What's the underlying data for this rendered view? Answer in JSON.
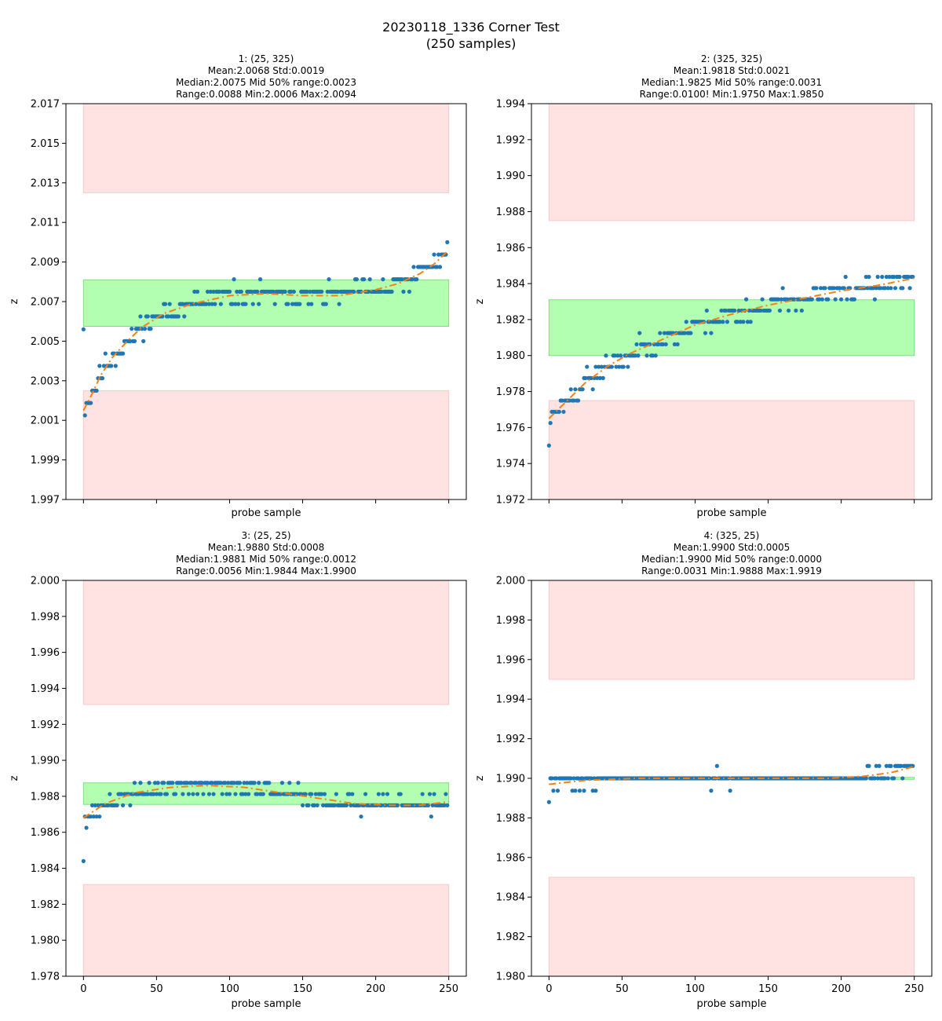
{
  "figure": {
    "title_line1": "20230118_1336 Corner Test",
    "title_line2": "(250 samples)"
  },
  "colors": {
    "points": "#1f77b4",
    "fit": "#ff7f0e",
    "good_band": "#b2ffb2",
    "good_band_edge": "#7fe07f",
    "bad_band": "#ffe2e2",
    "bad_band_edge": "#ffc8c8"
  },
  "chart_data": [
    {
      "type": "scatter",
      "title_lines": [
        "1: (25, 325)",
        "Mean:2.0068  Std:0.0019",
        "Median:2.0075  Mid 50% range:0.0023",
        "Range:0.0088  Min:2.0006  Max:2.0094"
      ],
      "xlabel": "probe sample",
      "ylabel": "z",
      "xlim": [
        -12,
        262
      ],
      "ylim": [
        1.997,
        2.017
      ],
      "yticks": [
        "1.997",
        "1.999",
        "2.001",
        "2.003",
        "2.005",
        "2.007",
        "2.009",
        "2.011",
        "2.013",
        "2.015",
        "2.017"
      ],
      "xticks": [
        0,
        50,
        100,
        150,
        200,
        250
      ],
      "show_xtick_labels": false,
      "green_band": [
        2.00575,
        2.0081
      ],
      "red_bands": [
        [
          1.997,
          2.0025
        ],
        [
          2.0125,
          2.017
        ]
      ],
      "band_x": [
        0,
        250
      ],
      "points_quantum": 0.000625,
      "trend": [
        [
          0,
          2.0015
        ],
        [
          5,
          2.0022
        ],
        [
          12,
          2.0033
        ],
        [
          20,
          2.0042
        ],
        [
          30,
          2.005
        ],
        [
          40,
          2.0057
        ],
        [
          55,
          2.0064
        ],
        [
          75,
          2.0069
        ],
        [
          100,
          2.0073
        ],
        [
          125,
          2.0074
        ],
        [
          150,
          2.0073
        ],
        [
          175,
          2.0073
        ],
        [
          200,
          2.0076
        ],
        [
          215,
          2.0079
        ],
        [
          230,
          2.0084
        ],
        [
          240,
          2.0089
        ],
        [
          250,
          2.0096
        ]
      ],
      "noise": 0.0007,
      "first_point": 2.0056,
      "seed": 11
    },
    {
      "type": "scatter",
      "title_lines": [
        "2: (325, 325)",
        "Mean:1.9818  Std:0.0021",
        "Median:1.9825  Mid 50% range:0.0031",
        "Range:0.0100!  Min:1.9750  Max:1.9850"
      ],
      "xlabel": "probe sample",
      "ylabel": "z",
      "xlim": [
        -12,
        262
      ],
      "ylim": [
        1.972,
        1.994
      ],
      "yticks": [
        "1.972",
        "1.974",
        "1.976",
        "1.978",
        "1.980",
        "1.982",
        "1.984",
        "1.986",
        "1.988",
        "1.990",
        "1.992",
        "1.994"
      ],
      "xticks": [
        0,
        50,
        100,
        150,
        200,
        250
      ],
      "show_xtick_labels": false,
      "green_band": [
        1.98,
        1.9831
      ],
      "red_bands": [
        [
          1.972,
          1.9775
        ],
        [
          1.9875,
          1.994
        ]
      ],
      "band_x": [
        0,
        250
      ],
      "points_quantum": 0.000625,
      "trend": [
        [
          0,
          1.9765
        ],
        [
          10,
          1.9773
        ],
        [
          25,
          1.9785
        ],
        [
          40,
          1.9794
        ],
        [
          55,
          1.9801
        ],
        [
          75,
          1.9808
        ],
        [
          100,
          1.9817
        ],
        [
          125,
          1.9823
        ],
        [
          150,
          1.9828
        ],
        [
          175,
          1.9832
        ],
        [
          200,
          1.9836
        ],
        [
          225,
          1.9839
        ],
        [
          250,
          1.9843
        ]
      ],
      "noise": 0.0008,
      "first_point": 1.975,
      "seed": 23
    },
    {
      "type": "scatter",
      "title_lines": [
        "3: (25, 25)",
        "Mean:1.9880  Std:0.0008",
        "Median:1.9881  Mid 50% range:0.0012",
        "Range:0.0056  Min:1.9844  Max:1.9900"
      ],
      "xlabel": "probe sample",
      "ylabel": "z",
      "xlim": [
        -12,
        262
      ],
      "ylim": [
        1.978,
        2.0
      ],
      "yticks": [
        "1.978",
        "1.980",
        "1.982",
        "1.984",
        "1.986",
        "1.988",
        "1.990",
        "1.992",
        "1.994",
        "1.996",
        "1.998",
        "2.000"
      ],
      "xticks": [
        0,
        50,
        100,
        150,
        200,
        250
      ],
      "show_xtick_labels": true,
      "green_band": [
        1.98755,
        1.98875
      ],
      "red_bands": [
        [
          1.978,
          1.9831
        ],
        [
          1.9931,
          2.0
        ]
      ],
      "band_x": [
        0,
        250
      ],
      "points_quantum": 0.000625,
      "trend": [
        [
          0,
          1.9868
        ],
        [
          15,
          1.9876
        ],
        [
          35,
          1.9882
        ],
        [
          60,
          1.9885
        ],
        [
          85,
          1.9886
        ],
        [
          110,
          1.9885
        ],
        [
          135,
          1.9882
        ],
        [
          160,
          1.9879
        ],
        [
          185,
          1.9876
        ],
        [
          210,
          1.9875
        ],
        [
          230,
          1.9875
        ],
        [
          250,
          1.9877
        ]
      ],
      "noise": 0.0007,
      "first_point": 1.9844,
      "seed": 37
    },
    {
      "type": "scatter",
      "title_lines": [
        "4: (325, 25)",
        "Mean:1.9900  Std:0.0005",
        "Median:1.9900  Mid 50% range:0.0000",
        "Range:0.0031  Min:1.9888  Max:1.9919"
      ],
      "xlabel": "probe sample",
      "ylabel": "z",
      "xlim": [
        -12,
        262
      ],
      "ylim": [
        1.98,
        2.0
      ],
      "yticks": [
        "1.980",
        "1.982",
        "1.984",
        "1.986",
        "1.988",
        "1.990",
        "1.992",
        "1.994",
        "1.996",
        "1.998",
        "2.000"
      ],
      "xticks": [
        0,
        50,
        100,
        150,
        200,
        250
      ],
      "show_xtick_labels": true,
      "green_band": [
        1.98995,
        1.99005
      ],
      "red_bands": [
        [
          1.98,
          1.985
        ],
        [
          1.995,
          2.0
        ]
      ],
      "band_x": [
        0,
        250
      ],
      "points_quantum": 0.000625,
      "trend": [
        [
          0,
          1.9897
        ],
        [
          25,
          1.9899
        ],
        [
          60,
          1.99
        ],
        [
          100,
          1.99
        ],
        [
          150,
          1.99
        ],
        [
          190,
          1.99
        ],
        [
          215,
          1.9901
        ],
        [
          235,
          1.9903
        ],
        [
          250,
          1.9906
        ]
      ],
      "noise": 0.0004,
      "first_point": 1.9888,
      "seed": 51
    }
  ]
}
